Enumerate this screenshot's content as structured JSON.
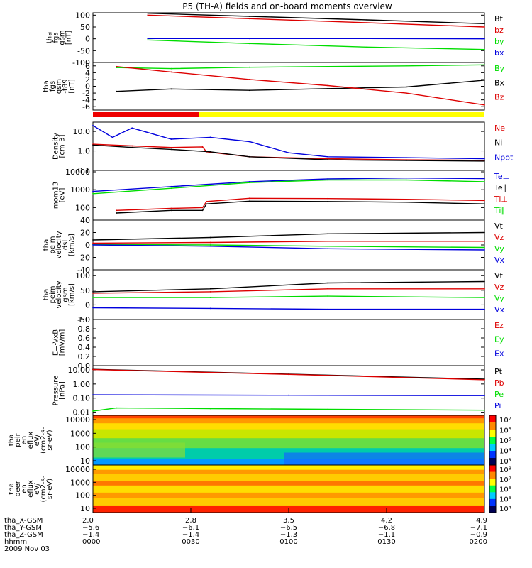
{
  "title": "P5 (TH-A) fields and on-board moments overview",
  "colors": {
    "black": "#000000",
    "red": "#dd0000",
    "green": "#00dd00",
    "blue": "#0000dd",
    "yellow": "#ffff00",
    "axis": "#000000"
  },
  "chart_data": [
    {
      "type": "line",
      "name": "fgs",
      "ylabel": [
        "tha",
        "fgs",
        "gsm",
        "[nT]"
      ],
      "ylim": [
        -100,
        110
      ],
      "yticks": [
        "100",
        "50",
        "0",
        "-50",
        "-100"
      ],
      "yticks_v": [
        100,
        50,
        0,
        -50,
        -100
      ],
      "series": [
        {
          "name": "Bt",
          "color": "black",
          "x": [
            0.14,
            0.4,
            0.7,
            1.0
          ],
          "y": [
            108,
            95,
            80,
            64
          ]
        },
        {
          "name": "bz",
          "color": "red",
          "x": [
            0.14,
            0.4,
            0.7,
            1.0
          ],
          "y": [
            100,
            85,
            68,
            50
          ]
        },
        {
          "name": "by",
          "color": "green",
          "x": [
            0.14,
            0.4,
            0.7,
            1.0
          ],
          "y": [
            -5,
            -20,
            -35,
            -45
          ]
        },
        {
          "name": "bx",
          "color": "blue",
          "x": [
            0.14,
            0.4,
            0.7,
            1.0
          ],
          "y": [
            1,
            1,
            1,
            0
          ]
        }
      ],
      "legend": [
        "Bt",
        "bz",
        "by",
        "bx"
      ]
    },
    {
      "type": "line",
      "name": "fgs-t89",
      "ylabel": [
        "tha",
        "fgs",
        "gsm",
        "-t89",
        "[nT]"
      ],
      "ylim": [
        -7,
        7
      ],
      "yticks": [
        "6",
        "4",
        "2",
        "0",
        "-2",
        "-4",
        "-6"
      ],
      "yticks_v": [
        6,
        4,
        2,
        0,
        -2,
        -4,
        -6
      ],
      "series": [
        {
          "name": "By",
          "color": "green",
          "x": [
            0.06,
            0.2,
            0.4,
            0.6,
            0.8,
            1.0
          ],
          "y": [
            5.5,
            5.2,
            5.6,
            5.8,
            6.0,
            6.3
          ]
        },
        {
          "name": "Bx",
          "color": "black",
          "x": [
            0.06,
            0.2,
            0.4,
            0.6,
            0.8,
            1.0
          ],
          "y": [
            -1.5,
            -0.8,
            -1.2,
            -0.7,
            -0.2,
            1.8
          ]
        },
        {
          "name": "Bz",
          "color": "red",
          "x": [
            0.06,
            0.2,
            0.4,
            0.6,
            0.8,
            1.0
          ],
          "y": [
            5.8,
            4.2,
            2.0,
            0.2,
            -2.0,
            -5.5
          ]
        }
      ],
      "legend": [
        "By",
        "Bx",
        "Bz"
      ]
    },
    {
      "type": "line",
      "name": "density",
      "log": true,
      "ylabel": [
        "Density",
        "[cm-3]"
      ],
      "ylim": [
        0.1,
        30
      ],
      "yticks": [
        "10.0",
        "1.0",
        "0.1"
      ],
      "yticks_v": [
        10,
        1,
        0.1
      ],
      "series": [
        {
          "name": "Npot",
          "color": "blue",
          "x": [
            0.0,
            0.05,
            0.1,
            0.2,
            0.3,
            0.4,
            0.5,
            0.6,
            0.8,
            1.0
          ],
          "y": [
            20,
            5,
            15,
            4,
            5,
            3,
            0.8,
            0.5,
            0.45,
            0.4
          ]
        },
        {
          "name": "Ne",
          "color": "red",
          "x": [
            0.0,
            0.1,
            0.2,
            0.28,
            0.29,
            0.4,
            0.6,
            0.8,
            1.0
          ],
          "y": [
            2.2,
            1.8,
            1.5,
            1.6,
            0.9,
            0.5,
            0.4,
            0.35,
            0.33
          ]
        },
        {
          "name": "Ni",
          "color": "black",
          "x": [
            0.0,
            0.1,
            0.2,
            0.3,
            0.4,
            0.6,
            0.8,
            1.0
          ],
          "y": [
            2.0,
            1.5,
            1.2,
            0.9,
            0.5,
            0.35,
            0.32,
            0.3
          ]
        }
      ],
      "legend": [
        "Ne",
        "Ni",
        "Npot"
      ]
    },
    {
      "type": "line",
      "name": "temperature",
      "log": true,
      "ylabel": [
        "mom13",
        "[eV]"
      ],
      "ylim": [
        20,
        12000
      ],
      "yticks": [
        "10000",
        "1000",
        "100"
      ],
      "yticks_v": [
        10000,
        1000,
        100
      ],
      "series": [
        {
          "name": "Te⊥",
          "color": "blue",
          "x": [
            0.0,
            0.2,
            0.4,
            0.6,
            0.8,
            1.0
          ],
          "y": [
            800,
            1500,
            2800,
            4000,
            4500,
            4200
          ]
        },
        {
          "name": "Ti∥",
          "color": "green",
          "x": [
            0.0,
            0.2,
            0.4,
            0.6,
            0.8,
            1.0
          ],
          "y": [
            600,
            1200,
            2500,
            3500,
            3500,
            2800
          ]
        },
        {
          "name": "Ti⊥",
          "color": "red",
          "x": [
            0.06,
            0.2,
            0.28,
            0.29,
            0.4,
            0.6,
            0.8,
            1.0
          ],
          "y": [
            70,
            90,
            100,
            220,
            330,
            320,
            290,
            250
          ]
        },
        {
          "name": "Te∥",
          "color": "black",
          "x": [
            0.06,
            0.2,
            0.28,
            0.29,
            0.4,
            0.6,
            0.8,
            1.0
          ],
          "y": [
            50,
            70,
            70,
            160,
            230,
            220,
            200,
            160
          ]
        }
      ],
      "legend": [
        "Te⊥",
        "Te∥",
        "Ti⊥",
        "Ti∥"
      ]
    },
    {
      "type": "line",
      "name": "velocity-dsl",
      "ylabel": [
        "tha",
        "peim",
        "velocity",
        "dsl",
        "[km/s]"
      ],
      "ylim": [
        -40,
        40
      ],
      "yticks": [
        "40",
        "20",
        "0",
        "-20",
        "-40"
      ],
      "yticks_v": [
        40,
        20,
        0,
        -20,
        -40
      ],
      "series": [
        {
          "name": "Vt",
          "color": "black",
          "x": [
            0.0,
            0.3,
            0.6,
            1.0
          ],
          "y": [
            8,
            12,
            18,
            20
          ]
        },
        {
          "name": "Vz",
          "color": "red",
          "x": [
            0.0,
            0.3,
            0.6,
            1.0
          ],
          "y": [
            3,
            4,
            6,
            6
          ]
        },
        {
          "name": "Vy",
          "color": "green",
          "x": [
            0.0,
            0.3,
            0.6,
            1.0
          ],
          "y": [
            1,
            0,
            -2,
            -4
          ]
        },
        {
          "name": "Vx",
          "color": "blue",
          "x": [
            0.0,
            0.3,
            0.6,
            1.0
          ],
          "y": [
            0,
            -2,
            -6,
            -8
          ]
        }
      ],
      "legend": [
        "Vt",
        "Vz",
        "Vy",
        "Vx"
      ]
    },
    {
      "type": "line",
      "name": "velocity-gsm",
      "ylabel": [
        "tha",
        "peim",
        "velocity",
        "gsm",
        "[km/s]"
      ],
      "ylim": [
        -50,
        120
      ],
      "yticks": [
        "100",
        "50",
        "0",
        "-50"
      ],
      "yticks_v": [
        100,
        50,
        0,
        -50
      ],
      "series": [
        {
          "name": "Vt",
          "color": "black",
          "x": [
            0.0,
            0.3,
            0.6,
            1.0
          ],
          "y": [
            45,
            55,
            75,
            80
          ]
        },
        {
          "name": "Vz",
          "color": "red",
          "x": [
            0.0,
            0.3,
            0.6,
            1.0
          ],
          "y": [
            40,
            45,
            55,
            55
          ]
        },
        {
          "name": "Vy",
          "color": "green",
          "x": [
            0.0,
            0.3,
            0.6,
            1.0
          ],
          "y": [
            25,
            25,
            30,
            25
          ]
        },
        {
          "name": "Vx",
          "color": "blue",
          "x": [
            0.0,
            0.3,
            0.6,
            1.0
          ],
          "y": [
            -10,
            -12,
            -15,
            -15
          ]
        }
      ],
      "legend": [
        "Vt",
        "Vz",
        "Vy",
        "Vx"
      ]
    },
    {
      "type": "line",
      "name": "efield",
      "ylabel": [
        "E=-VxB",
        "[mV/m]"
      ],
      "ylim": [
        0,
        1
      ],
      "yticks": [
        "1.0",
        "0.8",
        "0.6",
        "0.4",
        "0.2",
        "0.0"
      ],
      "yticks_v": [
        1,
        0.8,
        0.6,
        0.4,
        0.2,
        0
      ],
      "series": [],
      "legend": [
        "Ez",
        "Ey",
        "Ex"
      ]
    },
    {
      "type": "line",
      "name": "pressure",
      "log": true,
      "ylabel": [
        "Pressure",
        "[nPa]"
      ],
      "ylim": [
        0.006,
        20
      ],
      "yticks": [
        "10.00",
        "1.00",
        "0.10",
        "0.01"
      ],
      "yticks_v": [
        10,
        1,
        0.1,
        0.01
      ],
      "series": [
        {
          "name": "Pt",
          "color": "black",
          "x": [
            0.0,
            0.5,
            1.0
          ],
          "y": [
            11,
            5,
            2.2
          ]
        },
        {
          "name": "Pb",
          "color": "red",
          "x": [
            0.0,
            0.5,
            1.0
          ],
          "y": [
            10.5,
            4.8,
            2.0
          ]
        },
        {
          "name": "Pe",
          "color": "green",
          "x": [
            0.0,
            0.06,
            0.3,
            0.6,
            1.0
          ],
          "y": [
            0.012,
            0.02,
            0.018,
            0.016,
            0.014
          ]
        },
        {
          "name": "Pi",
          "color": "blue",
          "x": [
            0.0,
            0.5,
            1.0
          ],
          "y": [
            0.17,
            0.16,
            0.15
          ]
        }
      ],
      "legend": [
        "Pt",
        "Pb",
        "Pe",
        "Pi"
      ]
    }
  ],
  "spectrograms": [
    {
      "name": "peir",
      "ylabel": [
        "tha",
        "peir",
        "en",
        "eflux",
        "eV/",
        "(cm2-s-",
        "sr-eV)"
      ],
      "yticks": [
        "10000",
        "1000",
        "100",
        "10"
      ],
      "cbar": [
        "10⁷",
        "10⁶",
        "10⁵",
        "10⁴",
        "10³"
      ]
    },
    {
      "name": "peer",
      "ylabel": [
        "tha",
        "peer",
        "en",
        "eflux",
        "eV/",
        "(cm2-s-",
        "sr-eV)"
      ],
      "yticks": [
        "10000",
        "1000",
        "100",
        "10"
      ],
      "cbar": [
        "10⁸",
        "10⁷",
        "10⁶",
        "10⁵",
        "10⁴"
      ]
    }
  ],
  "xaxis": {
    "ticks": [
      "2.0",
      "2.8",
      "3.5",
      "4.2",
      "4.9"
    ],
    "rows": [
      {
        "label": "tha_X-GSM",
        "vals": [
          "2.0",
          "2.8",
          "3.5",
          "4.2",
          "4.9"
        ]
      },
      {
        "label": "tha_Y-GSM",
        "vals": [
          "−5.6",
          "−6.1",
          "−6.5",
          "−6.8",
          "−7.1"
        ]
      },
      {
        "label": "tha_Z-GSM",
        "vals": [
          "−1.4",
          "−1.4",
          "−1.3",
          "−1.1",
          "−0.9"
        ]
      },
      {
        "label": "hhmm",
        "vals": [
          "0000",
          "0030",
          "0100",
          "0130",
          "0200"
        ]
      }
    ],
    "date": "2009 Nov 03"
  }
}
